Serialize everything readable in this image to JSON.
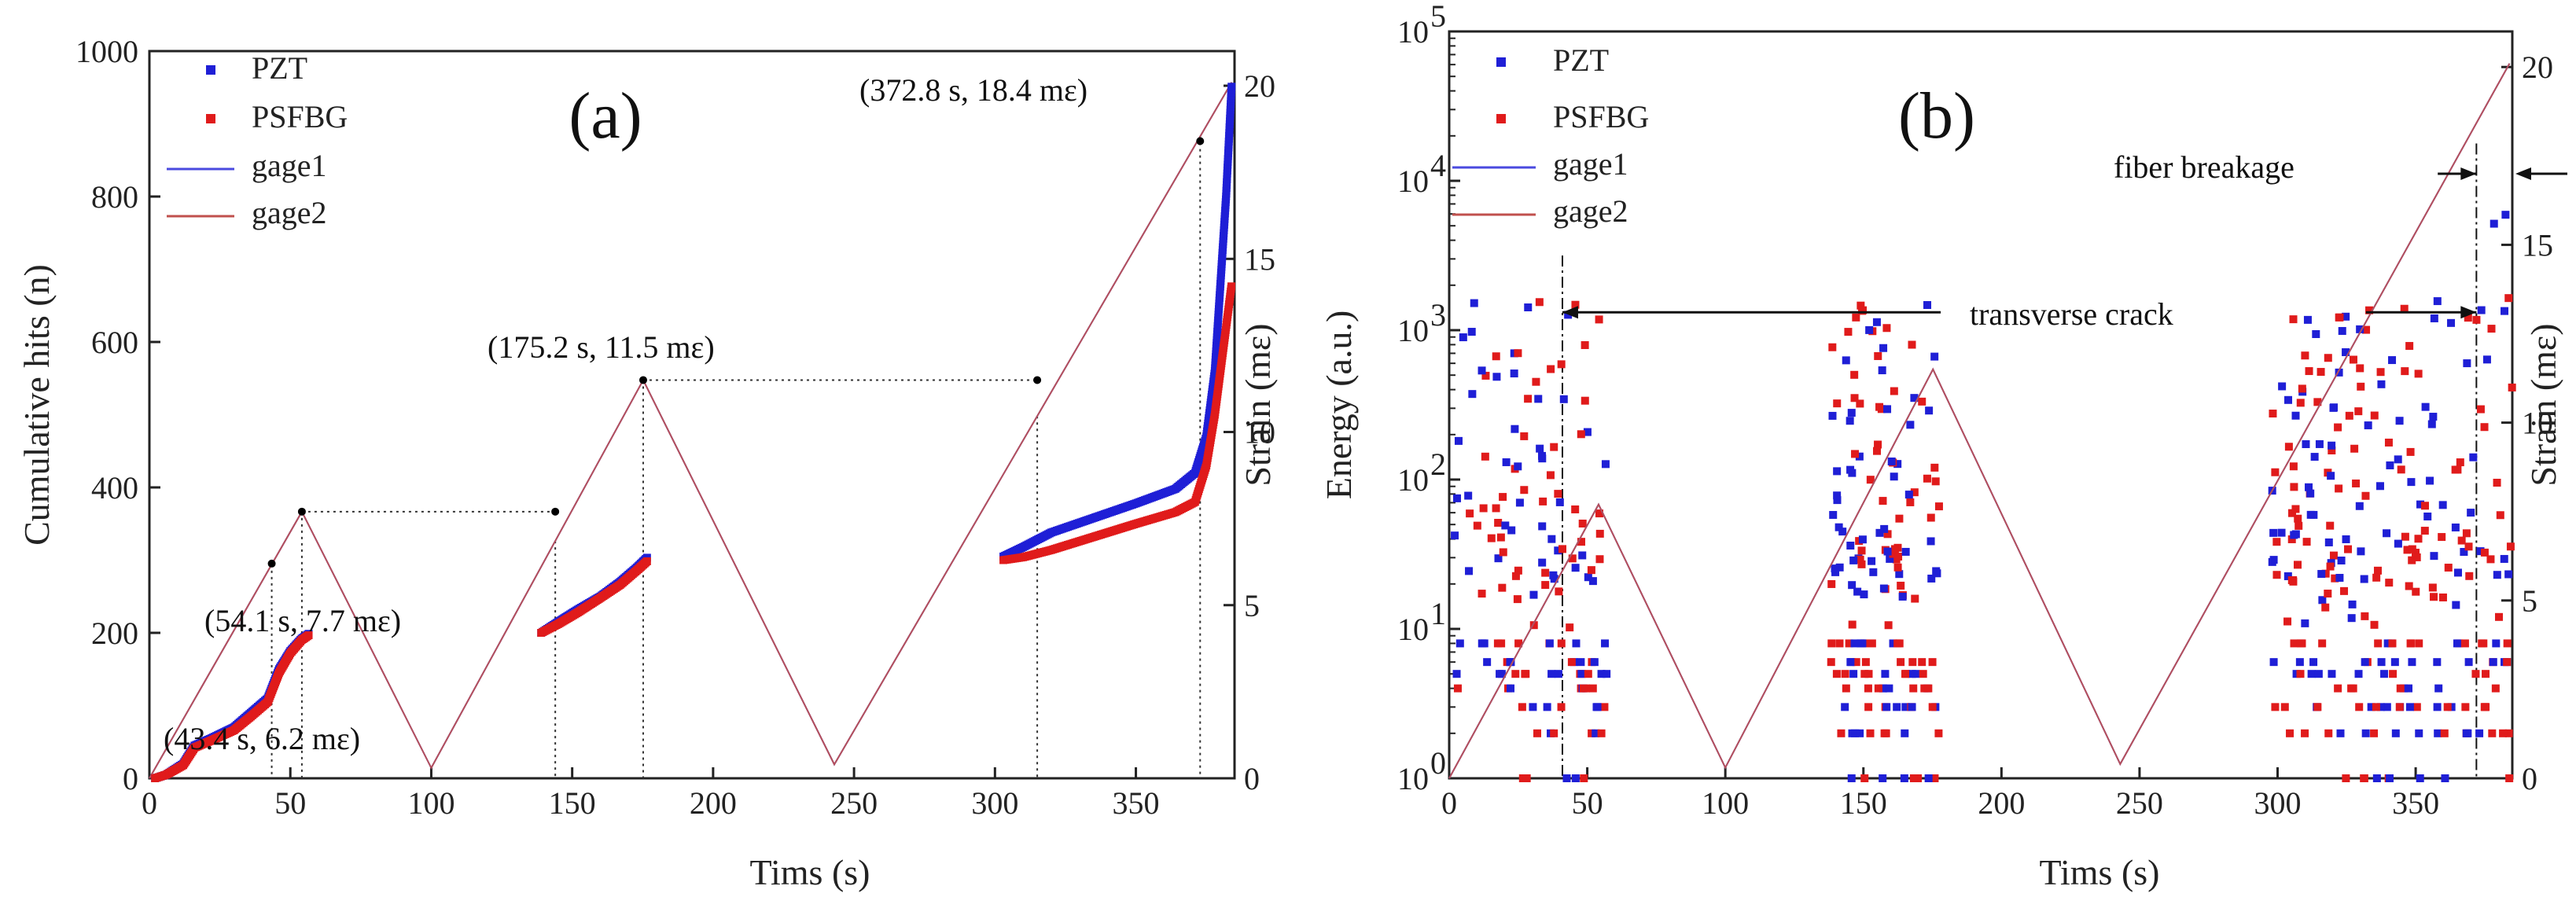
{
  "colors": {
    "pzt": "#1f1fd6",
    "psfbg": "#e01b1b",
    "gage1": "#4a4adf",
    "gage2": "#c0504d",
    "axis": "#222222"
  },
  "chart_data": [
    {
      "id": "a",
      "type": "scatter",
      "panel_label": "(a)",
      "xlabel": "Tims (s)",
      "ylabel": "Cumulative hits (n)",
      "y2label": "Strain (mε)",
      "xlim": [
        0,
        385
      ],
      "ylim": [
        0,
        1000
      ],
      "y2lim": [
        0,
        21
      ],
      "xticks": [
        0,
        50,
        100,
        150,
        200,
        250,
        300,
        350
      ],
      "yticks": [
        0,
        200,
        400,
        600,
        800,
        1000
      ],
      "y2ticks": [
        0,
        5,
        10,
        15,
        20
      ],
      "legend": [
        "PZT",
        "PSFBG",
        "gage1",
        "gage2"
      ],
      "strain_profile": [
        [
          0,
          0
        ],
        [
          54.1,
          7.7
        ],
        [
          100,
          0.3
        ],
        [
          175.2,
          11.5
        ],
        [
          243,
          0.4
        ],
        [
          384,
          20.1
        ]
      ],
      "annotations": [
        {
          "text": "(43.4 s, 6.2 mε)",
          "x": 43.4,
          "strain": 6.2
        },
        {
          "text": "(54.1 s, 7.7 mε)",
          "x": 54.1,
          "strain": 7.7
        },
        {
          "text": "(175.2 s, 11.5 mε)",
          "x": 175.2,
          "strain": 11.5
        },
        {
          "text": "(372.8 s, 18.4 mε)",
          "x": 372.8,
          "strain": 18.4
        }
      ],
      "reference_points": [
        {
          "x": 43.4,
          "strain": 6.2
        },
        {
          "x": 54.1,
          "strain": 7.7
        },
        {
          "x": 144,
          "strain": 7.7
        },
        {
          "x": 175.2,
          "strain": 11.5
        },
        {
          "x": 315,
          "strain": 11.5
        },
        {
          "x": 372.8,
          "strain": 18.4
        }
      ],
      "series": [
        {
          "name": "PZT",
          "segments": [
            [
              [
                2,
                0
              ],
              [
                6,
                5
              ],
              [
                12,
                20
              ],
              [
                16,
                45
              ],
              [
                22,
                55
              ],
              [
                30,
                70
              ],
              [
                36,
                90
              ],
              [
                42,
                110
              ],
              [
                46,
                150
              ],
              [
                50,
                175
              ],
              [
                54,
                192
              ],
              [
                57,
                200
              ]
            ],
            [
              [
                139,
                200
              ],
              [
                145,
                215
              ],
              [
                152,
                232
              ],
              [
                160,
                250
              ],
              [
                167,
                270
              ],
              [
                173,
                290
              ],
              [
                177,
                305
              ]
            ],
            [
              [
                303,
                305
              ],
              [
                310,
                318
              ],
              [
                320,
                338
              ],
              [
                335,
                358
              ],
              [
                350,
                378
              ],
              [
                364,
                398
              ],
              [
                371,
                420
              ],
              [
                375,
                470
              ],
              [
                378,
                560
              ],
              [
                380,
                680
              ],
              [
                382,
                800
              ],
              [
                384,
                955
              ]
            ]
          ]
        },
        {
          "name": "PSFBG",
          "segments": [
            [
              [
                2,
                0
              ],
              [
                6,
                5
              ],
              [
                12,
                18
              ],
              [
                16,
                42
              ],
              [
                22,
                52
              ],
              [
                30,
                66
              ],
              [
                36,
                85
              ],
              [
                42,
                105
              ],
              [
                46,
                145
              ],
              [
                50,
                172
              ],
              [
                54,
                190
              ],
              [
                57,
                198
              ]
            ],
            [
              [
                139,
                200
              ],
              [
                145,
                212
              ],
              [
                152,
                228
              ],
              [
                160,
                248
              ],
              [
                167,
                266
              ],
              [
                173,
                286
              ],
              [
                177,
                300
              ]
            ],
            [
              [
                303,
                300
              ],
              [
                310,
                304
              ],
              [
                320,
                314
              ],
              [
                335,
                332
              ],
              [
                350,
                350
              ],
              [
                364,
                366
              ],
              [
                371,
                380
              ],
              [
                375,
                430
              ],
              [
                378,
                500
              ],
              [
                380,
                560
              ],
              [
                382,
                620
              ],
              [
                384,
                680
              ]
            ]
          ]
        }
      ]
    },
    {
      "id": "b",
      "type": "scatter",
      "panel_label": "(b)",
      "xlabel": "Tims (s)",
      "ylabel": "Energy (a.u.)",
      "y2label": "Strain (mε)",
      "xlim": [
        0,
        385
      ],
      "ylim_log10": [
        0,
        5
      ],
      "y2lim": [
        0,
        21
      ],
      "xticks": [
        0,
        50,
        100,
        150,
        200,
        250,
        300,
        350
      ],
      "yticks_exp": [
        0,
        1,
        2,
        3,
        4,
        5
      ],
      "ytick_base": "10",
      "y2ticks": [
        0,
        5,
        10,
        15,
        20
      ],
      "legend": [
        "PZT",
        "PSFBG",
        "gage1",
        "gage2"
      ],
      "strain_profile": [
        [
          0,
          0
        ],
        [
          54.1,
          7.7
        ],
        [
          100,
          0.3
        ],
        [
          175.2,
          11.5
        ],
        [
          243,
          0.4
        ],
        [
          384,
          20.1
        ]
      ],
      "annotations": [
        {
          "text": "transverse crack",
          "x_from": 41,
          "x_to": 372,
          "energy_log10": 3.12
        },
        {
          "text": "fiber breakage",
          "x": 372,
          "strain": 17
        }
      ],
      "scatter_windows": [
        {
          "x_range": [
            2,
            57
          ],
          "n": 150
        },
        {
          "x_range": [
            138,
            178
          ],
          "n": 170
        },
        {
          "x_range": [
            298,
            385
          ],
          "n": 280
        }
      ]
    }
  ]
}
